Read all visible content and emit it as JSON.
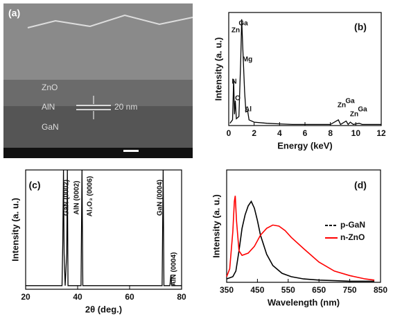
{
  "chart_data": [
    {
      "type": "image",
      "label": "(a)",
      "annotations": [
        "ZnO",
        "AlN",
        "GaN",
        "20 nm"
      ]
    },
    {
      "type": "line",
      "label": "(b)",
      "xlabel": "Energy (keV)",
      "ylabel": "Intensity (a. u.)",
      "xlim": [
        0,
        12
      ],
      "xticks": [
        0,
        2,
        4,
        6,
        8,
        10,
        12
      ],
      "ylim": [
        0,
        100
      ],
      "series": [
        {
          "color": "#000000",
          "x": [
            0.1,
            0.3,
            0.39,
            0.45,
            0.52,
            0.6,
            0.8,
            0.95,
            1.02,
            1.1,
            1.25,
            1.35,
            1.49,
            1.6,
            2,
            3,
            4,
            5,
            6,
            7,
            8,
            8.63,
            8.8,
            9.24,
            9.4,
            9.57,
            9.8,
            10.26,
            10.5,
            11,
            12
          ],
          "values": [
            2,
            5,
            41,
            10,
            22,
            6,
            8,
            60,
            94,
            70,
            30,
            12,
            13,
            5,
            3,
            2,
            1.5,
            1,
            1,
            1,
            1,
            5,
            1,
            4,
            1,
            3,
            1,
            2,
            1,
            1,
            1
          ]
        }
      ],
      "annotations": [
        "N",
        "O",
        "Zn",
        "Ga",
        "Mg",
        "Al",
        "Zn",
        "Ga",
        "Zn",
        "Ga"
      ]
    },
    {
      "type": "line",
      "label": "(c)",
      "xlabel": "2θ (deg.)",
      "ylabel": "Intensity (a. u.)",
      "xlim": [
        20,
        80
      ],
      "xticks": [
        20,
        40,
        60,
        80
      ],
      "ylim": [
        0,
        100
      ],
      "series": [
        {
          "color": "#000000",
          "x": [
            20,
            30,
            34,
            34.3,
            34.56,
            34.8,
            35.2,
            35.8,
            36.04,
            36.3,
            37,
            41.3,
            41.68,
            42,
            50,
            60,
            70,
            72.5,
            72.9,
            73.2,
            75.5,
            75.9,
            76.2,
            80
          ],
          "values": [
            3,
            3,
            3,
            40,
            100,
            30,
            3,
            30,
            100,
            3,
            3,
            3,
            100,
            3,
            3,
            3,
            3,
            3,
            100,
            3,
            3,
            12,
            3,
            3
          ]
        }
      ],
      "annotations": [
        "GaN (0002)",
        "AlN (0002)",
        "Al₂O₃ (0006)",
        "GaN (0004)",
        "AlN (0004)"
      ]
    },
    {
      "type": "line",
      "label": "(d)",
      "xlabel": "Wavelength (nm)",
      "ylabel": "Intensity (a. u.)",
      "xlim": [
        350,
        850
      ],
      "xticks": [
        350,
        450,
        550,
        650,
        750,
        850
      ],
      "ylim": [
        0,
        100
      ],
      "legend": "right",
      "series": [
        {
          "name": "p-GaN",
          "color": "#000000",
          "x": [
            350,
            370,
            380,
            390,
            400,
            410,
            420,
            430,
            440,
            450,
            460,
            480,
            500,
            530,
            560,
            600,
            650,
            700,
            750,
            800,
            830
          ],
          "values": [
            3,
            5,
            10,
            28,
            48,
            60,
            68,
            72,
            66,
            55,
            42,
            25,
            15,
            8,
            5,
            3,
            2,
            1.5,
            1,
            1,
            1
          ]
        },
        {
          "name": "n-ZnO",
          "color": "#ff0000",
          "x": [
            350,
            360,
            370,
            375,
            378,
            382,
            390,
            400,
            420,
            440,
            460,
            480,
            500,
            520,
            540,
            560,
            600,
            650,
            700,
            750,
            800,
            830
          ],
          "values": [
            5,
            12,
            45,
            72,
            77,
            55,
            28,
            24,
            26,
            32,
            42,
            48,
            51,
            50,
            46,
            40,
            30,
            18,
            10,
            6,
            3,
            2
          ]
        }
      ]
    }
  ]
}
